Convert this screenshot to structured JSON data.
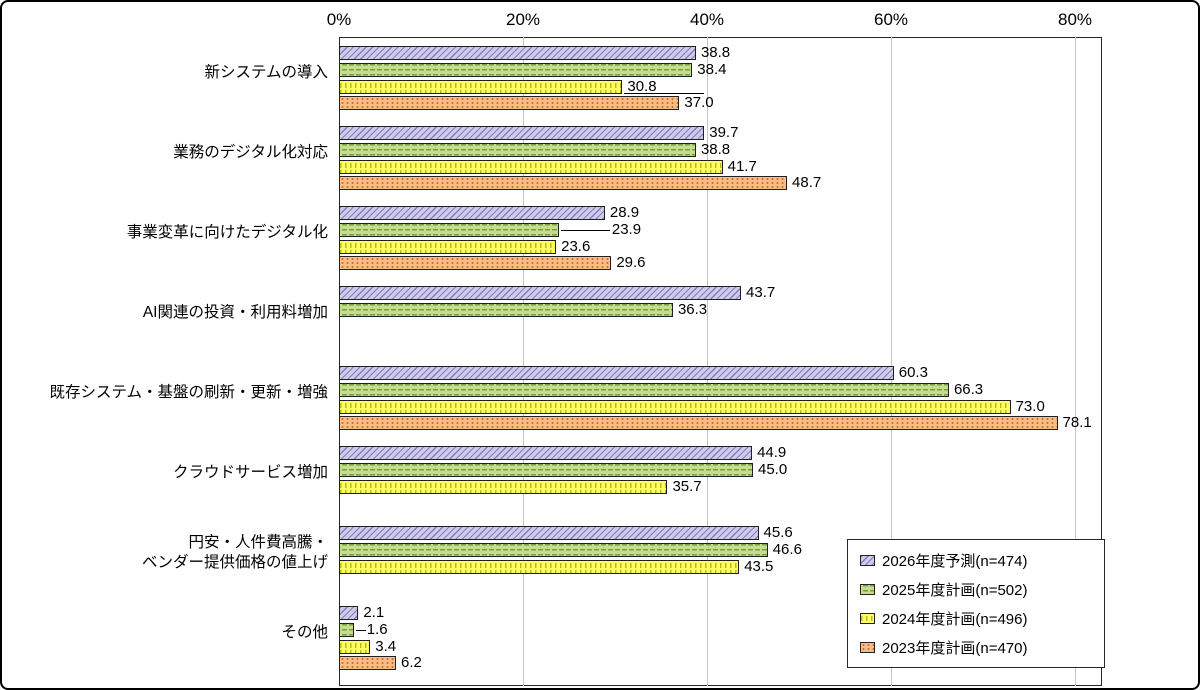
{
  "page": {
    "background": "#ffffff",
    "border_color": "#000000"
  },
  "chart_data": {
    "type": "bar",
    "orientation": "horizontal",
    "title": "",
    "xlabel": "",
    "ylabel": "",
    "grid": true,
    "value_label_format": "one-decimal",
    "x_axis": {
      "position": "top",
      "ticks": [
        "0%",
        "20%",
        "40%",
        "60%",
        "80%"
      ],
      "tick_step_pct": 20,
      "range_pct": [
        0,
        83
      ]
    },
    "categories": [
      "新システムの導入",
      "業務のデジタル化対応",
      "事業変革に向けたデジタル化",
      "AI関連の投資・利用料増加",
      "既存システム・基盤の刷新・更新・増強",
      "クラウドサービス増加",
      "円安・人件費高騰・\nベンダー提供価格の値上げ",
      "その他"
    ],
    "series": [
      {
        "name": "2026年度予測(n=474)",
        "pattern": "diagonal-hatch",
        "base_color": "#cfccea",
        "line_color": "#837dbd",
        "values": [
          38.8,
          39.7,
          28.9,
          43.7,
          60.3,
          44.9,
          45.6,
          2.1
        ]
      },
      {
        "name": "2025年度計画(n=502)",
        "pattern": "horizontal-dash",
        "base_color": "#c6dc8e",
        "line_color": "#76a03e",
        "values": [
          38.4,
          38.8,
          23.9,
          36.3,
          66.3,
          45.0,
          46.6,
          1.6
        ]
      },
      {
        "name": "2024年度計画(n=496)",
        "pattern": "vertical-dash",
        "base_color": "#ffff60",
        "line_color": "#b9b92e",
        "values": [
          30.8,
          41.7,
          23.6,
          null,
          73.0,
          35.7,
          43.5,
          3.4
        ]
      },
      {
        "name": "2023年度計画(n=470)",
        "pattern": "dots",
        "base_color": "#f6bd89",
        "line_color": "#bc5f1d",
        "values": [
          37.0,
          48.7,
          29.6,
          null,
          78.1,
          null,
          null,
          6.2
        ]
      }
    ],
    "legend": {
      "position": "bottom-right"
    },
    "label_leaders": [
      {
        "category": 0,
        "series": 2,
        "line_len": 80,
        "line_dy": 6,
        "label_dx": 5
      },
      {
        "category": 2,
        "series": 1,
        "line_len": 49,
        "line_dy": 0,
        "label_dx": 53
      },
      {
        "category": 7,
        "series": 1,
        "line_len": 10,
        "line_dy": 0,
        "label_dx": 13
      }
    ]
  }
}
